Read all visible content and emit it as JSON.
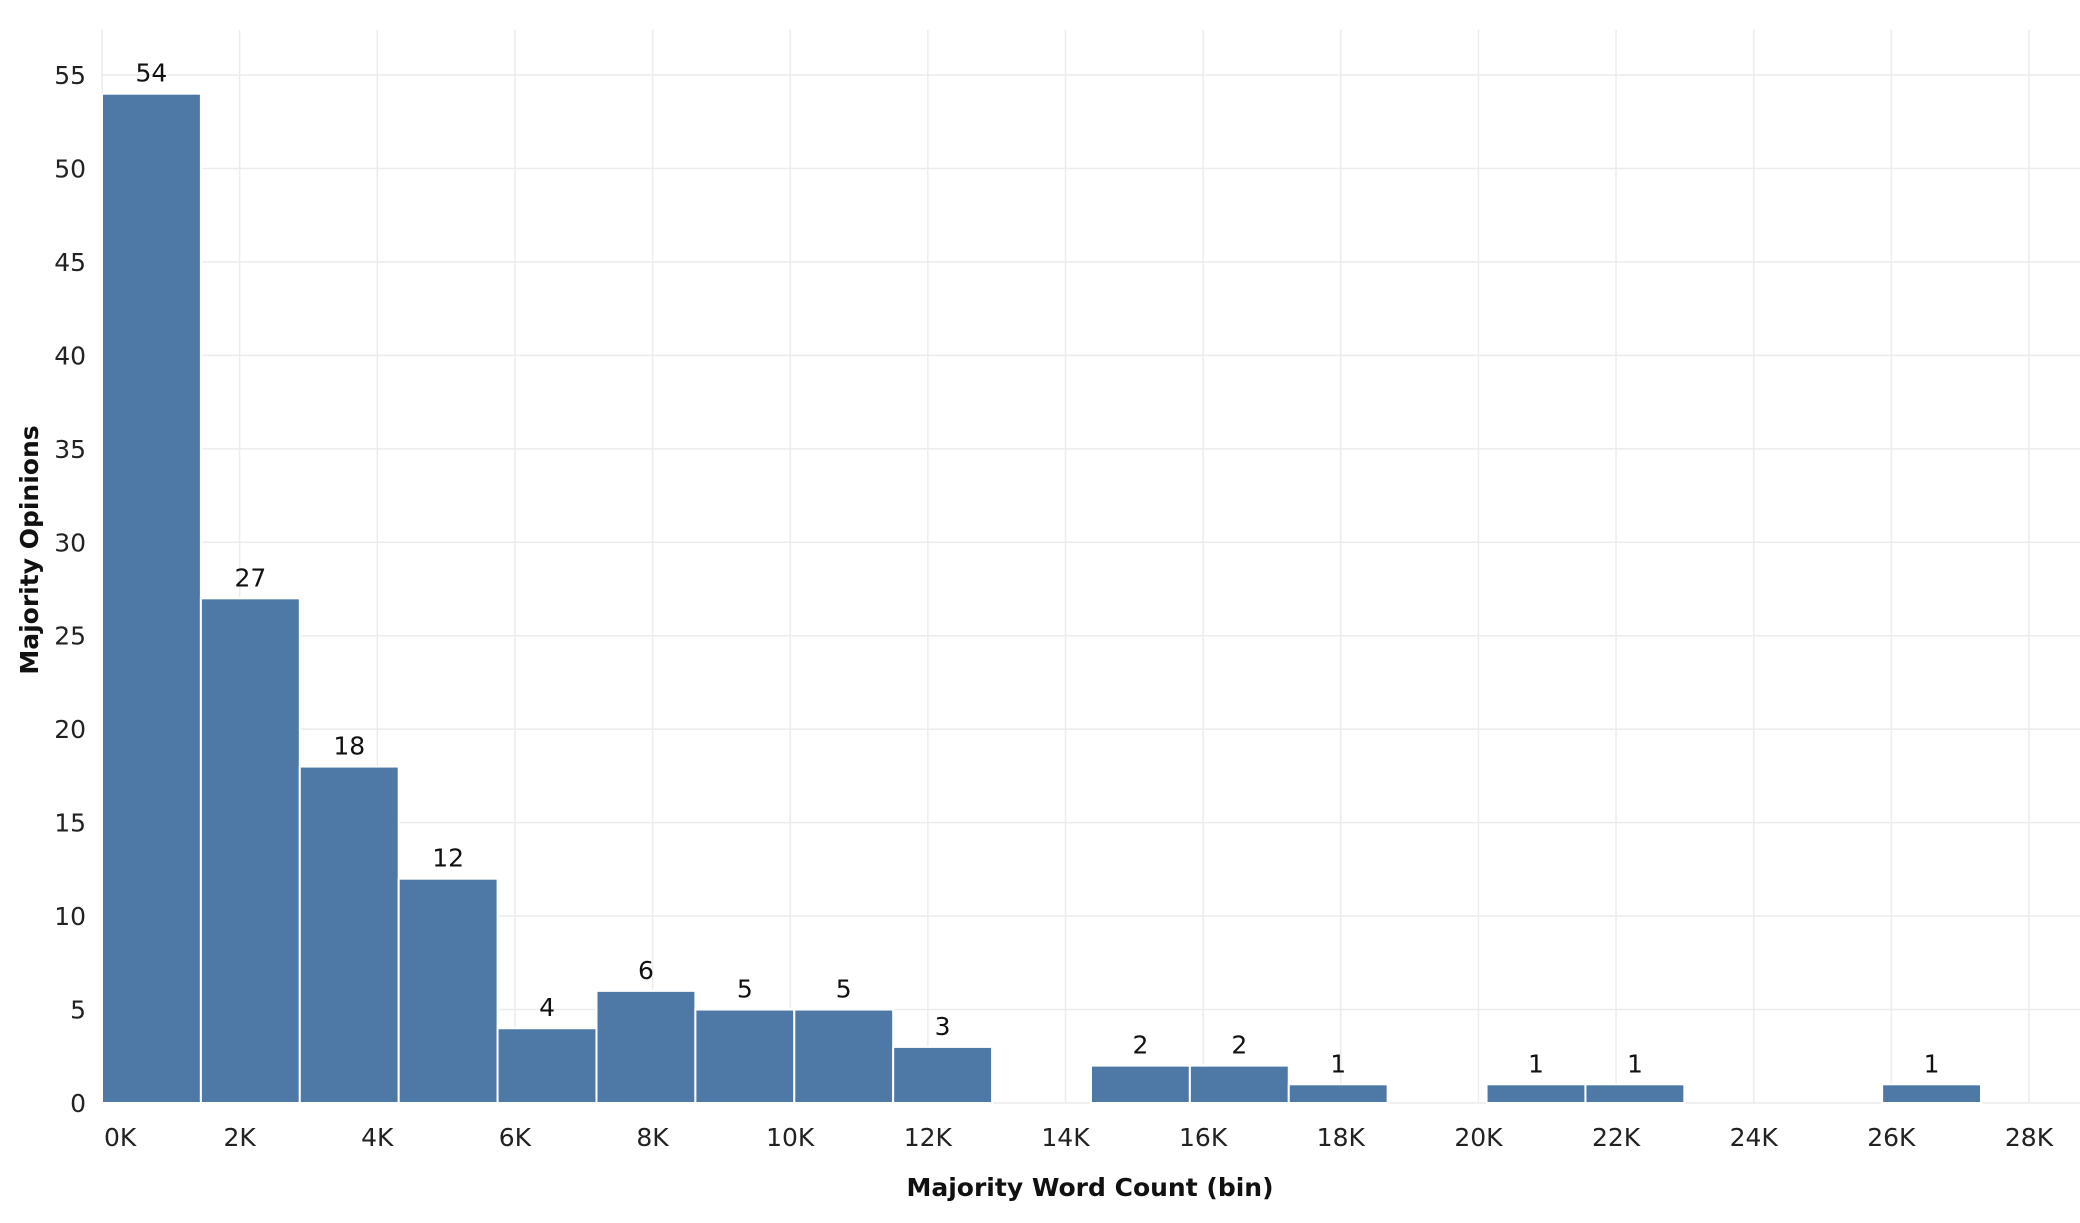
{
  "chart_data": {
    "type": "bar",
    "title": "",
    "xlabel": "Majority Word Count (bin)",
    "ylabel": "Majority Opinions",
    "bin_width": 1437,
    "bins": [
      {
        "start": 0,
        "value": 54
      },
      {
        "start": 1437,
        "value": 27
      },
      {
        "start": 2874,
        "value": 18
      },
      {
        "start": 4311,
        "value": 12
      },
      {
        "start": 5748,
        "value": 4
      },
      {
        "start": 7185,
        "value": 6
      },
      {
        "start": 8622,
        "value": 5
      },
      {
        "start": 10059,
        "value": 5
      },
      {
        "start": 11496,
        "value": 3
      },
      {
        "start": 14370,
        "value": 2
      },
      {
        "start": 15807,
        "value": 2
      },
      {
        "start": 17244,
        "value": 1
      },
      {
        "start": 20118,
        "value": 1
      },
      {
        "start": 21555,
        "value": 1
      },
      {
        "start": 25866,
        "value": 1
      }
    ],
    "x_ticks": [
      {
        "value": 0,
        "label": "0K"
      },
      {
        "value": 2000,
        "label": "2K"
      },
      {
        "value": 4000,
        "label": "4K"
      },
      {
        "value": 6000,
        "label": "6K"
      },
      {
        "value": 8000,
        "label": "8K"
      },
      {
        "value": 10000,
        "label": "10K"
      },
      {
        "value": 12000,
        "label": "12K"
      },
      {
        "value": 14000,
        "label": "14K"
      },
      {
        "value": 16000,
        "label": "16K"
      },
      {
        "value": 18000,
        "label": "18K"
      },
      {
        "value": 20000,
        "label": "20K"
      },
      {
        "value": 22000,
        "label": "22K"
      },
      {
        "value": 24000,
        "label": "24K"
      },
      {
        "value": 26000,
        "label": "26K"
      },
      {
        "value": 28000,
        "label": "28K"
      }
    ],
    "y_ticks": [
      {
        "value": 0,
        "label": "0"
      },
      {
        "value": 5,
        "label": "5"
      },
      {
        "value": 10,
        "label": "10"
      },
      {
        "value": 15,
        "label": "15"
      },
      {
        "value": 20,
        "label": "20"
      },
      {
        "value": 25,
        "label": "25"
      },
      {
        "value": 30,
        "label": "30"
      },
      {
        "value": 35,
        "label": "35"
      },
      {
        "value": 40,
        "label": "40"
      },
      {
        "value": 45,
        "label": "45"
      },
      {
        "value": 50,
        "label": "50"
      },
      {
        "value": 55,
        "label": "55"
      }
    ],
    "xlim": [
      0,
      28500
    ],
    "ylim": [
      0,
      55
    ],
    "grid": true,
    "legend": "none",
    "bar_color": "#4e79a7"
  }
}
